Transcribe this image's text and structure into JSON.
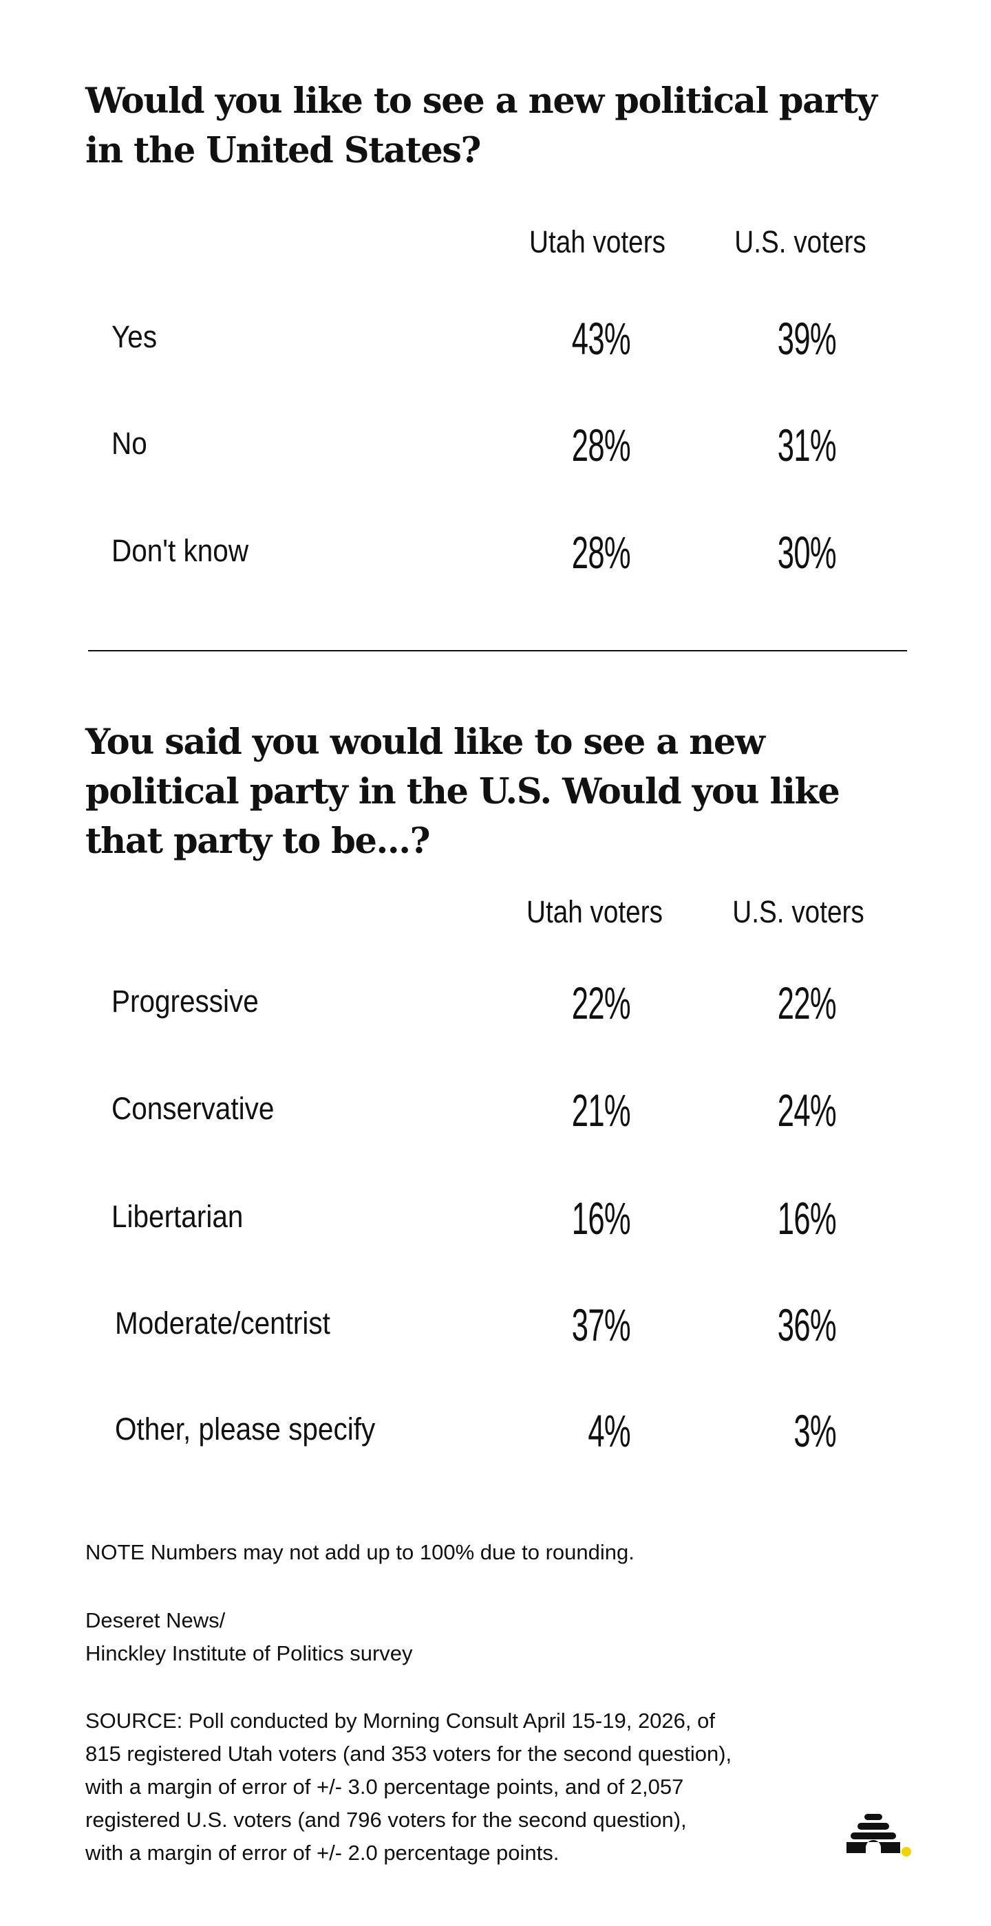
{
  "question1": {
    "title": "Would you like to see a new political party in the United States?",
    "columns": [
      "Utah voters",
      "U.S. voters"
    ],
    "rows": [
      {
        "label": "Yes",
        "utah": "43%",
        "us": "39%"
      },
      {
        "label": "No",
        "utah": "28%",
        "us": "31%"
      },
      {
        "label": "Don't know",
        "utah": "28%",
        "us": "30%"
      }
    ]
  },
  "question2": {
    "title": "You said you would like to see a new political party in the U.S. Would you like that party to be...?",
    "columns": [
      "Utah voters",
      "U.S. voters"
    ],
    "rows": [
      {
        "label": "Progressive",
        "utah": "22%",
        "us": "22%"
      },
      {
        "label": "Conservative",
        "utah": "21%",
        "us": "24%"
      },
      {
        "label": "Libertarian",
        "utah": "16%",
        "us": "16%"
      },
      {
        "label": "Moderate/centrist",
        "utah": "37%",
        "us": "36%"
      },
      {
        "label": "Other, please specify",
        "utah": "4%",
        "us": "3%"
      }
    ]
  },
  "notes": {
    "rounding": "NOTE Numbers may not add up to 100% due to rounding.",
    "credit_line1": "Deseret News/",
    "credit_line2": "Hinckley Institute of Politics survey",
    "source_lines": [
      "SOURCE: Poll conducted by Morning Consult April 15-19, 2026, of",
      "815 registered Utah voters (and 353 voters for the second question),",
      "with a margin of error of +/- 3.0 percentage points, and of 2,057",
      "registered U.S.  voters (and 796 voters for the second question),",
      "with a margin of error of +/- 2.0 percentage points."
    ]
  },
  "logo": {
    "icon": "beehive-icon",
    "accent_color": "#f5d300",
    "ink_color": "#111111"
  }
}
